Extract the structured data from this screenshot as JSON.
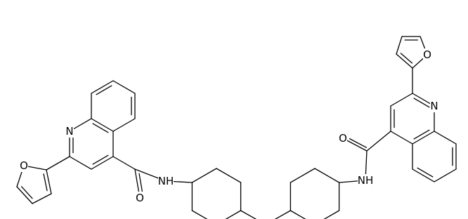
{
  "atom_labels": [
    "O",
    "N",
    "NH",
    "O",
    "NH",
    "O",
    "N",
    "O"
  ]
}
